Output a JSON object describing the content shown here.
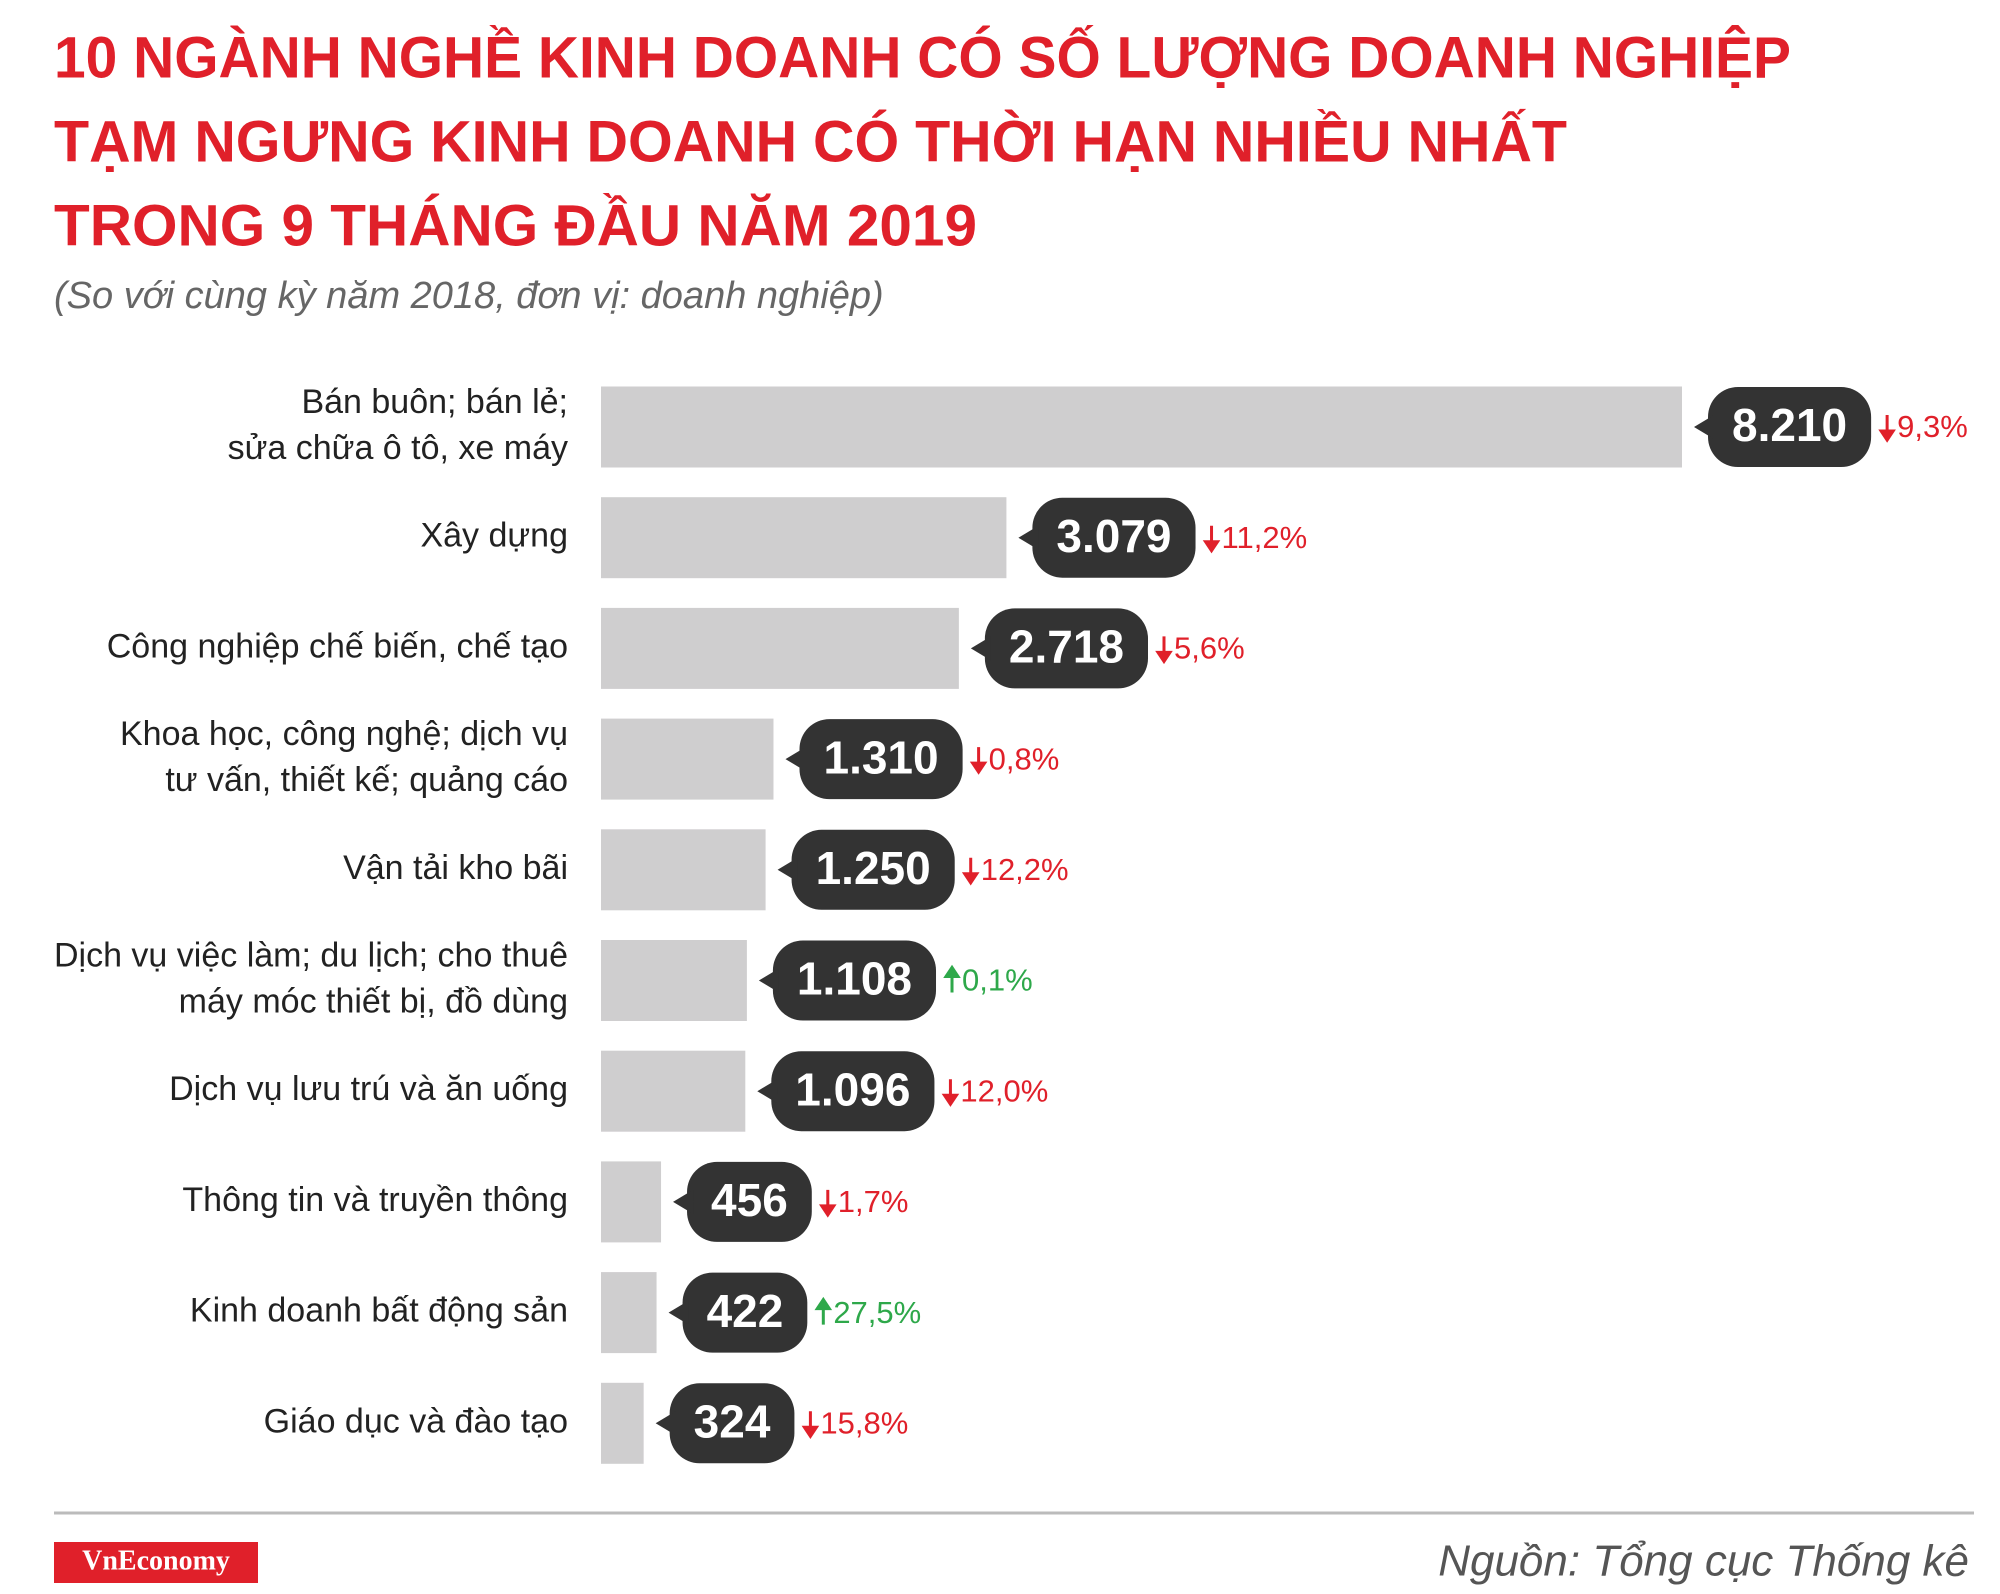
{
  "chart_data": {
    "type": "barh",
    "title": [
      "10 NGÀNH NGHỀ KINH DOANH CÓ SỐ LƯỢNG DOANH NGHIỆP",
      "TẠM NGƯNG KINH DOANH CÓ THỜI HẠN NHIỀU NHẤT",
      "TRONG 9 THÁNG ĐẦU NĂM 2019"
    ],
    "subtitle": "(So với cùng kỳ năm 2018, đơn vị: doanh nghiệp)",
    "categories": [
      [
        "Bán buôn; bán lẻ;",
        "sửa chữa ô tô, xe máy"
      ],
      [
        "Xây dựng"
      ],
      [
        "Công nghiệp chế biến, chế tạo"
      ],
      [
        "Khoa học, công nghệ; dịch vụ",
        "tư vấn, thiết kế; quảng cáo"
      ],
      [
        "Vận tải kho bãi"
      ],
      [
        "Dịch vụ việc làm; du lịch; cho thuê",
        "máy móc thiết bị, đồ dùng"
      ],
      [
        "Dịch vụ lưu trú và ăn uống"
      ],
      [
        "Thông tin và truyền thông"
      ],
      [
        "Kinh doanh bất động sản"
      ],
      [
        "Giáo dục và đào tạo"
      ]
    ],
    "values": [
      8210,
      3079,
      2718,
      1310,
      1250,
      1108,
      1096,
      456,
      422,
      324
    ],
    "value_labels": [
      "8.210",
      "3.079",
      "2.718",
      "1.310",
      "1.250",
      "1.108",
      "1.096",
      "456",
      "422",
      "324"
    ],
    "changes": [
      -9.3,
      -11.2,
      -5.6,
      -0.8,
      -12.2,
      0.1,
      -12.0,
      -1.7,
      27.5,
      -15.8
    ],
    "change_labels": [
      "9,3%",
      "11,2%",
      "5,6%",
      "0,8%",
      "12,2%",
      "0,1%",
      "12,0%",
      "1,7%",
      "27,5%",
      "15,8%"
    ],
    "color": "#cfcecf",
    "label_color": "#333333",
    "down_color": "#e0202a",
    "up_color": "#2ea84a",
    "source": "Nguồn: Tổng cục Thống kê",
    "brand": "VnEconomy"
  }
}
